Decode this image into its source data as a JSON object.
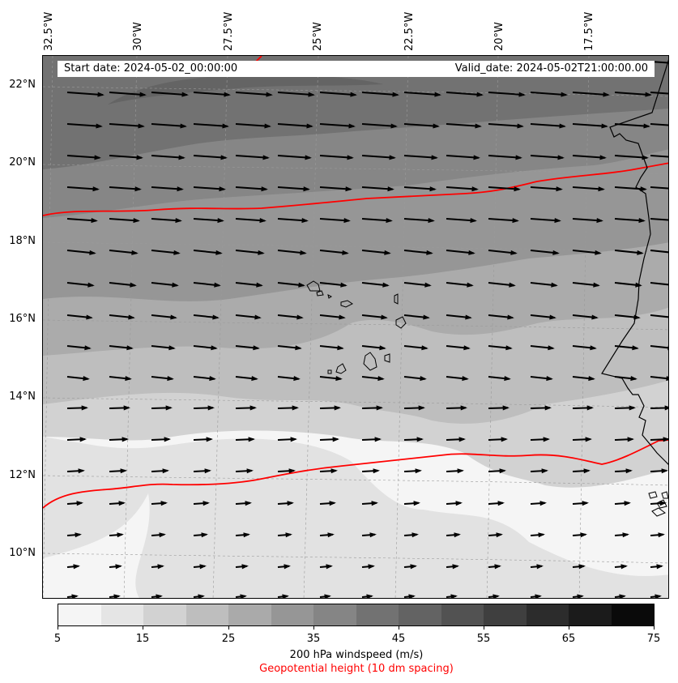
{
  "info": {
    "start_date": "Start date: 2024-05-02_00:00:00",
    "valid_date": "Valid_date: 2024-05-02T21:00:00.00"
  },
  "lon_labels": [
    "32.5°W",
    "30°W",
    "27.5°W",
    "25°W",
    "22.5°W",
    "20°W",
    "17.5°W"
  ],
  "lat_labels": [
    "22°N",
    "20°N",
    "18°N",
    "16°N",
    "14°N",
    "12°N",
    "10°N"
  ],
  "colorbar": {
    "ticks": [
      "5",
      "15",
      "25",
      "35",
      "45",
      "55",
      "65",
      "75"
    ],
    "colors": [
      "#f5f5f5",
      "#e5e5e5",
      "#d2d2d2",
      "#bebebe",
      "#aaaaaa",
      "#969696",
      "#858585",
      "#727272",
      "#636363",
      "#525252",
      "#3f3f3f",
      "#2c2c2c",
      "#1b1b1b",
      "#0a0a0a"
    ],
    "label": "200 hPa windspeed (m/s)",
    "contour_label": "Geopotential height (10 dm spacing)"
  },
  "colors": {
    "contour": "#ff0000",
    "coastline": "#000000",
    "wind_arrow": "#000000"
  }
}
